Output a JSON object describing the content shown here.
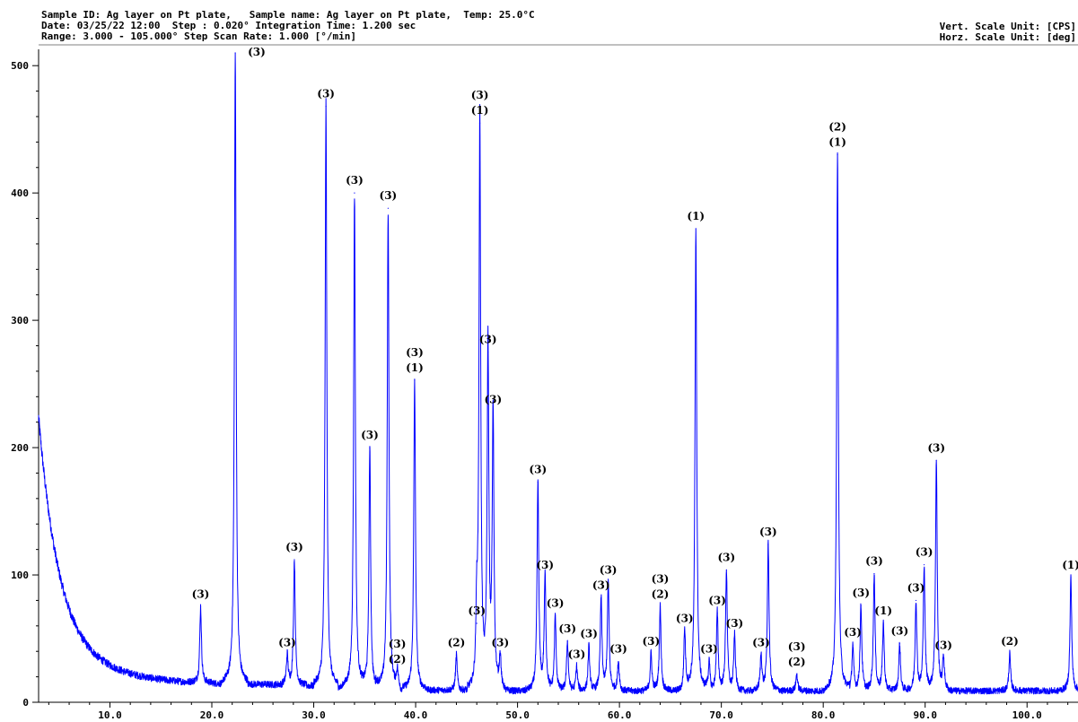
{
  "header": {
    "line1": "Sample ID: Ag layer on Pt plate,   Sample name: Ag layer on Pt plate,  Temp: 25.0°C",
    "line2": "Date: 03/25/22 12:00  Step : 0.020° Integration Time: 1.200 sec",
    "line3": "Range: 3.000 - 105.000° Step Scan Rate: 1.000 [°/min]",
    "vert_unit": "Vert. Scale Unit: [CPS]",
    "horz_unit": "Horz. Scale Unit: [deg]"
  },
  "chart_data": {
    "type": "line",
    "title": "",
    "xlabel": "",
    "ylabel": "",
    "xlim": [
      3,
      105
    ],
    "ylim": [
      0,
      510
    ],
    "x_ticks": [
      "10.0",
      "20.0",
      "30.0",
      "40.0",
      "50.0",
      "60.0",
      "70.0",
      "80.0",
      "90.0",
      "100.0"
    ],
    "y_ticks": [
      "0",
      "100",
      "200",
      "300",
      "400",
      "500"
    ],
    "line_color": "#0000ff",
    "baseline_counts": 9,
    "background_decay": {
      "initial_counts": 180,
      "decay_deg": 2.0
    },
    "peaks": [
      {
        "x": 18.9,
        "y": 75,
        "label": [
          "(3)"
        ]
      },
      {
        "x": 22.3,
        "y": 510,
        "label": [
          "(3)"
        ]
      },
      {
        "x": 27.4,
        "y": 37,
        "label": [
          "(3)"
        ]
      },
      {
        "x": 28.1,
        "y": 112,
        "label": [
          "(3)"
        ]
      },
      {
        "x": 31.2,
        "y": 468,
        "label": [
          "(3)"
        ]
      },
      {
        "x": 34.0,
        "y": 400,
        "label": [
          "(3)"
        ]
      },
      {
        "x": 35.5,
        "y": 200,
        "label": [
          "(3)"
        ]
      },
      {
        "x": 37.3,
        "y": 388,
        "label": [
          "(3)"
        ]
      },
      {
        "x": 38.2,
        "y": 24,
        "label": [
          "(3)",
          "(2)"
        ]
      },
      {
        "x": 39.9,
        "y": 253,
        "label": [
          "(3)",
          "(1)"
        ]
      },
      {
        "x": 44.0,
        "y": 37,
        "label": [
          "(2)"
        ]
      },
      {
        "x": 46.0,
        "y": 62,
        "label": [
          "(3)"
        ]
      },
      {
        "x": 46.3,
        "y": 455,
        "label": [
          "(3)",
          "(1)"
        ]
      },
      {
        "x": 47.1,
        "y": 275,
        "label": [
          "(3)"
        ]
      },
      {
        "x": 47.6,
        "y": 228,
        "label": [
          "(3)"
        ]
      },
      {
        "x": 48.3,
        "y": 37,
        "label": [
          "(3)"
        ]
      },
      {
        "x": 52.0,
        "y": 173,
        "label": [
          "(3)"
        ]
      },
      {
        "x": 52.7,
        "y": 98,
        "label": [
          "(3)"
        ]
      },
      {
        "x": 53.7,
        "y": 68,
        "label": [
          "(3)"
        ]
      },
      {
        "x": 54.9,
        "y": 48,
        "label": [
          "(3)"
        ]
      },
      {
        "x": 55.8,
        "y": 28,
        "label": [
          "(3)"
        ]
      },
      {
        "x": 57.0,
        "y": 44,
        "label": [
          "(3)"
        ]
      },
      {
        "x": 58.2,
        "y": 82,
        "label": [
          "(3)"
        ]
      },
      {
        "x": 58.9,
        "y": 94,
        "label": [
          "(3)"
        ]
      },
      {
        "x": 59.9,
        "y": 32,
        "label": [
          "(3)"
        ]
      },
      {
        "x": 63.1,
        "y": 38,
        "label": [
          "(3)"
        ]
      },
      {
        "x": 64.0,
        "y": 75,
        "label": [
          "(3)",
          "(2)"
        ]
      },
      {
        "x": 66.4,
        "y": 56,
        "label": [
          "(3)"
        ]
      },
      {
        "x": 67.5,
        "y": 372,
        "label": [
          "(1)"
        ]
      },
      {
        "x": 68.8,
        "y": 32,
        "label": [
          "(3)"
        ]
      },
      {
        "x": 69.6,
        "y": 70,
        "label": [
          "(3)"
        ]
      },
      {
        "x": 70.5,
        "y": 104,
        "label": [
          "(3)"
        ]
      },
      {
        "x": 71.3,
        "y": 52,
        "label": [
          "(3)"
        ]
      },
      {
        "x": 73.9,
        "y": 37,
        "label": [
          "(3)"
        ]
      },
      {
        "x": 74.6,
        "y": 124,
        "label": [
          "(3)"
        ]
      },
      {
        "x": 77.4,
        "y": 22,
        "label": [
          "(3)",
          "(2)"
        ]
      },
      {
        "x": 81.4,
        "y": 430,
        "label": [
          "(2)",
          "(1)"
        ]
      },
      {
        "x": 82.9,
        "y": 45,
        "label": [
          "(3)"
        ]
      },
      {
        "x": 83.7,
        "y": 76,
        "label": [
          "(3)"
        ]
      },
      {
        "x": 85.0,
        "y": 101,
        "label": [
          "(3)"
        ]
      },
      {
        "x": 85.9,
        "y": 62,
        "label": [
          "(1)"
        ]
      },
      {
        "x": 87.5,
        "y": 46,
        "label": [
          "(3)"
        ]
      },
      {
        "x": 89.1,
        "y": 80,
        "label": [
          "(3)"
        ]
      },
      {
        "x": 89.9,
        "y": 108,
        "label": [
          "(3)"
        ]
      },
      {
        "x": 91.1,
        "y": 190,
        "label": [
          "(3)"
        ]
      },
      {
        "x": 91.8,
        "y": 35,
        "label": [
          "(3)"
        ]
      },
      {
        "x": 98.3,
        "y": 38,
        "label": [
          "(2)"
        ]
      },
      {
        "x": 104.3,
        "y": 98,
        "label": [
          "(1)"
        ]
      }
    ]
  }
}
